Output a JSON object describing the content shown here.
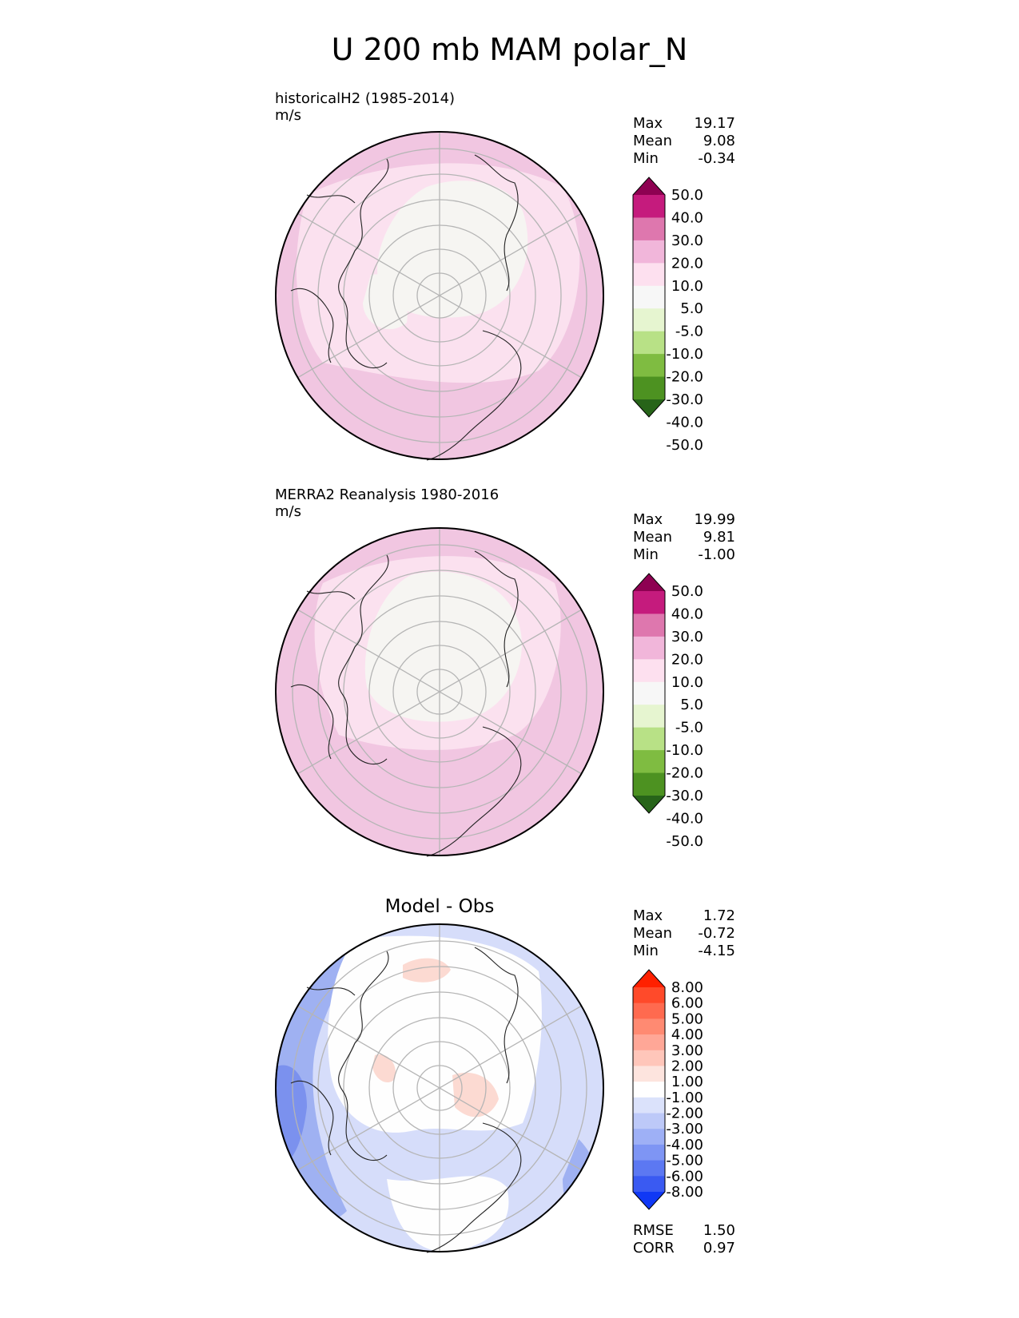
{
  "title": "U 200 mb MAM polar_N",
  "panels": [
    {
      "id": "test",
      "title": "historicalH2 (1985-2014)",
      "units": "m/s",
      "stats": [
        {
          "label": "Max",
          "value": "19.17"
        },
        {
          "label": "Mean",
          "value": "9.08"
        },
        {
          "label": "Min",
          "value": "-0.34"
        }
      ]
    },
    {
      "id": "ref",
      "title": "MERRA2 Reanalysis 1980-2016",
      "units": "m/s",
      "stats": [
        {
          "label": "Max",
          "value": "19.99"
        },
        {
          "label": "Mean",
          "value": "9.81"
        },
        {
          "label": "Min",
          "value": "-1.00"
        }
      ]
    },
    {
      "id": "diff",
      "title": "Model - Obs",
      "stats": [
        {
          "label": "Max",
          "value": "1.72"
        },
        {
          "label": "Mean",
          "value": "-0.72"
        },
        {
          "label": "Min",
          "value": "-4.15"
        }
      ],
      "metrics": [
        {
          "label": "RMSE",
          "value": "1.50"
        },
        {
          "label": "CORR",
          "value": "0.97"
        }
      ]
    }
  ],
  "colorbars": {
    "field": {
      "labels": [
        "50.0",
        "40.0",
        "30.0",
        "20.0",
        "10.0",
        "5.0",
        "-5.0",
        "-10.0",
        "-20.0",
        "-30.0",
        "-40.0",
        "-50.0"
      ],
      "colors": [
        "#8e0152",
        "#c51b7d",
        "#de77ae",
        "#f1b6da",
        "#fde0ef",
        "#f7f7f7",
        "#e6f5d0",
        "#b8e186",
        "#7fbc41",
        "#4d9221",
        "#276419"
      ]
    },
    "diff": {
      "labels": [
        "8.00",
        "6.00",
        "5.00",
        "4.00",
        "3.00",
        "2.00",
        "1.00",
        "-1.00",
        "-2.00",
        "-3.00",
        "-4.00",
        "-5.00",
        "-6.00",
        "-8.00"
      ],
      "colors": [
        "#ff2000",
        "#ff4a2a",
        "#ff6a4f",
        "#ff8a72",
        "#ffa797",
        "#ffc6ba",
        "#fde4de",
        "#ffffff",
        "#dbe2fb",
        "#bdc9f8",
        "#9eb0f6",
        "#7e95f4",
        "#5c78f2",
        "#3a5af2",
        "#1038f5"
      ]
    }
  },
  "chart_data": [
    {
      "type": "heatmap",
      "title": "historicalH2 (1985-2014)",
      "units": "m/s",
      "projection": "polar stereographic, north pole",
      "max": 19.17,
      "mean": 9.08,
      "min": -0.34,
      "levels": [
        -50,
        -40,
        -30,
        -20,
        -10,
        -5,
        5,
        10,
        20,
        30,
        40,
        50
      ]
    },
    {
      "type": "heatmap",
      "title": "MERRA2 Reanalysis 1980-2016",
      "units": "m/s",
      "projection": "polar stereographic, north pole",
      "max": 19.99,
      "mean": 9.81,
      "min": -1.0,
      "levels": [
        -50,
        -40,
        -30,
        -20,
        -10,
        -5,
        5,
        10,
        20,
        30,
        40,
        50
      ]
    },
    {
      "type": "heatmap",
      "title": "Model - Obs",
      "projection": "polar stereographic, north pole",
      "max": 1.72,
      "mean": -0.72,
      "min": -4.15,
      "rmse": 1.5,
      "corr": 0.97,
      "levels": [
        -8,
        -6,
        -5,
        -4,
        -3,
        -2,
        -1,
        1,
        2,
        3,
        4,
        5,
        6,
        8
      ]
    }
  ]
}
